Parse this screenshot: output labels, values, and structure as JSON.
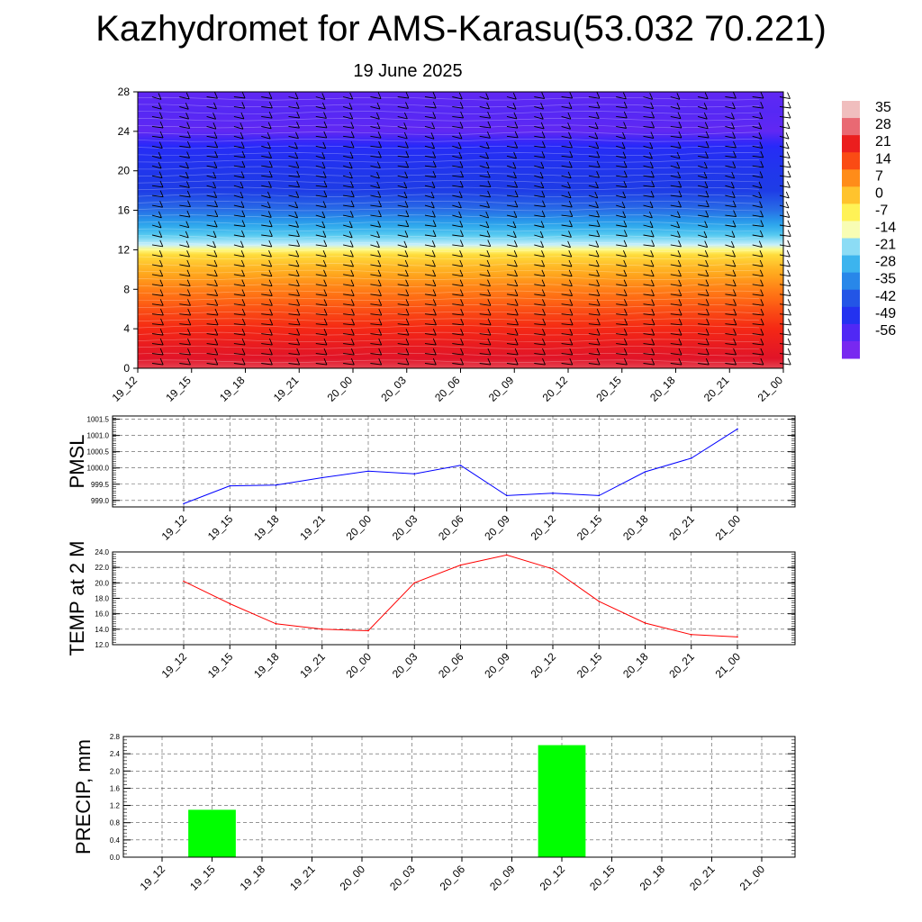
{
  "title": "Kazhydromet for AMS-Karasu(53.032 70.221)",
  "subtitle": "19 June 2025",
  "colors": {
    "pmsl_line": "#0000ff",
    "temp_line": "#ff0000",
    "precip_bar": "#00ff00"
  },
  "chart_data": [
    {
      "type": "heatmap",
      "name": "vertical-temperature-wind",
      "x_ticks": [
        "19_12",
        "19_15",
        "19_18",
        "19_21",
        "20_00",
        "20_03",
        "20_06",
        "20_09",
        "20_12",
        "20_15",
        "20_18",
        "20_21",
        "21_00"
      ],
      "y_ticks": [
        "0",
        "4",
        "8",
        "12",
        "16",
        "20",
        "24",
        "28"
      ],
      "ylim": [
        0,
        28
      ],
      "colorbar_labels": [
        "35",
        "28",
        "21",
        "14",
        "7",
        "0",
        "-7",
        "-14",
        "-21",
        "-28",
        "-35",
        "-42",
        "-49",
        "-56"
      ],
      "colorbar_range": [
        -56,
        35
      ],
      "temperature_profile": [
        {
          "h": 0,
          "t": 30
        },
        {
          "h": 2,
          "t": 26
        },
        {
          "h": 4,
          "t": 21
        },
        {
          "h": 6,
          "t": 17
        },
        {
          "h": 8,
          "t": 12
        },
        {
          "h": 10,
          "t": 6
        },
        {
          "h": 11.5,
          "t": 0
        },
        {
          "h": 12.5,
          "t": -14
        },
        {
          "h": 14,
          "t": -24
        },
        {
          "h": 16,
          "t": -35
        },
        {
          "h": 18,
          "t": -42
        },
        {
          "h": 20,
          "t": -44
        },
        {
          "h": 22,
          "t": -47
        },
        {
          "h": 24,
          "t": -54
        },
        {
          "h": 26,
          "t": -53
        },
        {
          "h": 28,
          "t": -54
        }
      ],
      "wind_barbs": true
    },
    {
      "type": "line",
      "name": "PMSL",
      "ylabel": "PMSL",
      "x": [
        "19_12",
        "19_15",
        "19_18",
        "19_21",
        "20_00",
        "20_03",
        "20_06",
        "20_09",
        "20_12",
        "20_15",
        "20_18",
        "20_21",
        "21_00"
      ],
      "values": [
        998.9,
        999.45,
        999.47,
        999.7,
        999.9,
        999.82,
        1000.08,
        999.15,
        999.22,
        999.15,
        999.88,
        1000.3,
        1001.2
      ],
      "y_ticks": [
        "999.0",
        "999.5",
        "1000.0",
        "1000.5",
        "1001.0",
        "1001.5"
      ],
      "ylim": [
        998.8,
        1001.6
      ],
      "grid": true
    },
    {
      "type": "line",
      "name": "TEMP at 2 M",
      "ylabel": "TEMP at 2 M",
      "x": [
        "19_12",
        "19_15",
        "19_18",
        "19_21",
        "20_00",
        "20_03",
        "20_06",
        "20_09",
        "20_12",
        "20_15",
        "20_18",
        "20_21",
        "21_00"
      ],
      "values": [
        20.2,
        17.3,
        14.7,
        14.0,
        13.8,
        20.0,
        22.3,
        23.6,
        21.8,
        17.6,
        14.8,
        13.3,
        13.0
      ],
      "y_ticks": [
        "12.0",
        "14.0",
        "16.0",
        "18.0",
        "20.0",
        "22.0",
        "24.0"
      ],
      "ylim": [
        12,
        24
      ],
      "grid": true
    },
    {
      "type": "bar",
      "name": "PRECIP, mm",
      "ylabel": "PRECIP, mm",
      "categories": [
        "19_12",
        "19_15",
        "19_18",
        "19_21",
        "20_00",
        "20_03",
        "20_06",
        "20_09",
        "20_12",
        "20_15",
        "20_18",
        "20_21",
        "21_00"
      ],
      "values": [
        0,
        1.1,
        0,
        0,
        0,
        0,
        0,
        0,
        2.6,
        0,
        0,
        0,
        0
      ],
      "y_ticks": [
        "0.0",
        "0.4",
        "0.8",
        "1.2",
        "1.6",
        "2.0",
        "2.4",
        "2.8"
      ],
      "ylim": [
        0,
        2.8
      ],
      "grid": true
    }
  ]
}
